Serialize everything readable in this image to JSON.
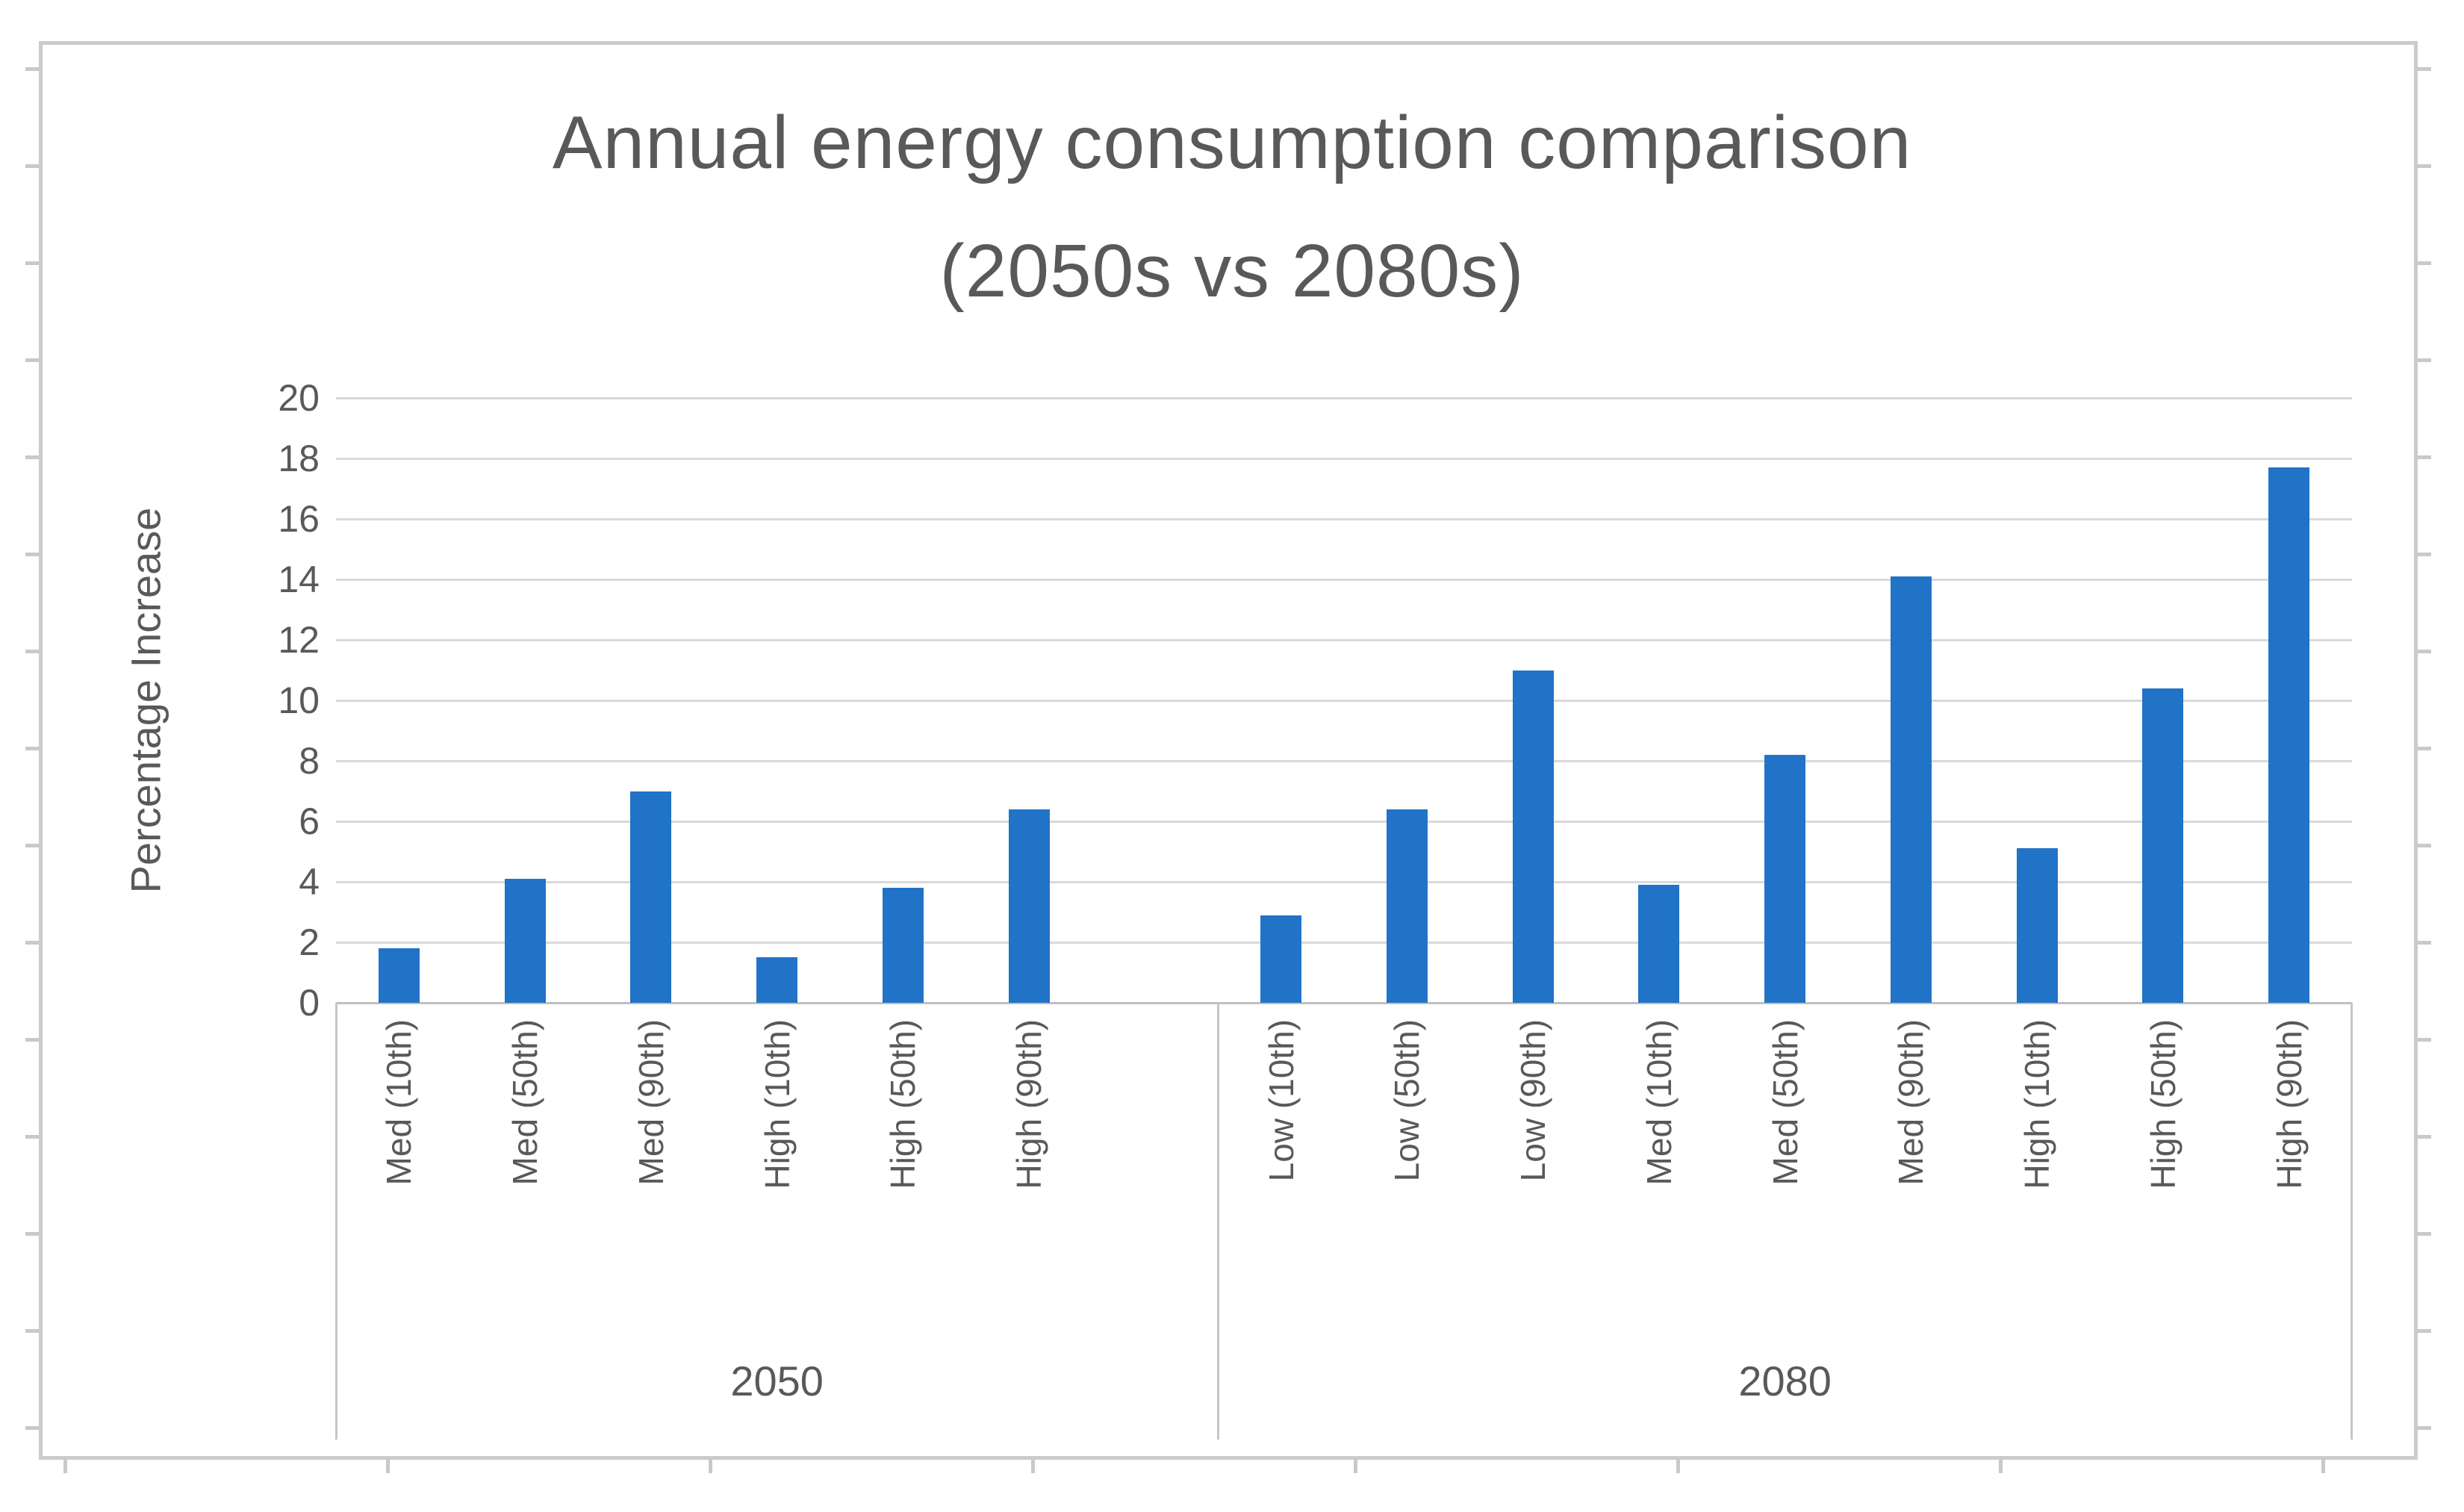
{
  "chart_data": {
    "type": "bar",
    "title": "Annual energy consumption comparison",
    "subtitle": "(2050s vs 2080s)",
    "ylabel": "Percentage Increase",
    "ylim": [
      0,
      20
    ],
    "yticks": [
      0,
      2,
      4,
      6,
      8,
      10,
      12,
      14,
      16,
      18,
      20
    ],
    "grid": true,
    "legend_position": "none",
    "bar_color": "#2173c7",
    "gridline_color": "#d9d9d9",
    "axis_line_color": "#bfbfbf",
    "text_color": "#595959",
    "groups": [
      {
        "label": "2050",
        "categories": [
          "Med (10th)",
          "Med (50th)",
          "Med (90th)",
          "High (10th)",
          "High (50th)",
          "High (90th)"
        ],
        "values": [
          1.8,
          4.1,
          7.0,
          1.5,
          3.8,
          6.4
        ],
        "trailing_empty_slots": 1
      },
      {
        "label": "2080",
        "categories": [
          "Low (10th)",
          "Low (50th)",
          "Low (90th)",
          "Med (10th)",
          "Med (50th)",
          "Med (90th)",
          "High (10th)",
          "High (50th)",
          "High (90th)"
        ],
        "values": [
          2.9,
          6.4,
          11.0,
          3.9,
          8.2,
          14.1,
          5.1,
          10.4,
          17.7
        ],
        "trailing_empty_slots": 0
      }
    ]
  }
}
